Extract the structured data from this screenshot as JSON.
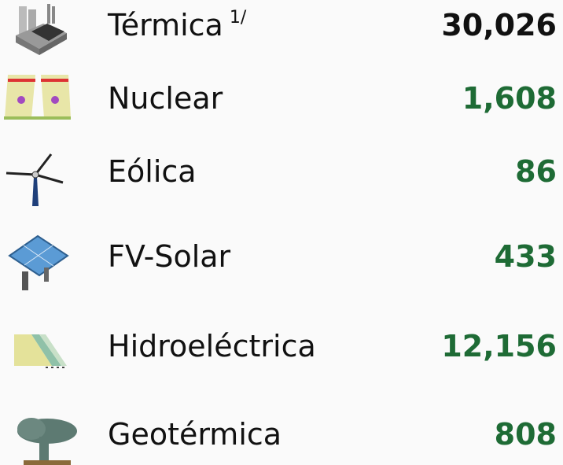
{
  "rows": [
    {
      "label": "Térmica",
      "note": "1/",
      "value": "30,026"
    },
    {
      "label": "Nuclear",
      "value": "1,608"
    },
    {
      "label": "Eólica",
      "value": "86"
    },
    {
      "label": "FV-Solar",
      "value": "433"
    },
    {
      "label": "Hidroeléctrica",
      "value": "12,156"
    },
    {
      "label": "Geotérmica",
      "value": "808"
    }
  ]
}
